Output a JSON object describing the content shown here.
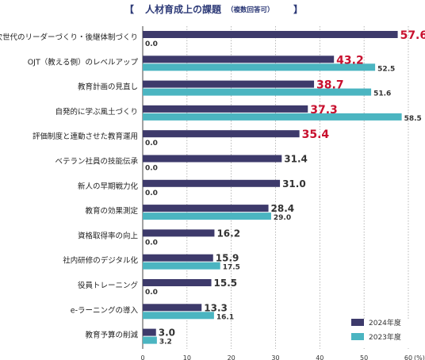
{
  "title": {
    "bracket_left": "【",
    "main": "人材育成上の課題",
    "sub": "（複数回答可）",
    "bracket_right": "】"
  },
  "chart_data": {
    "type": "bar",
    "orientation": "horizontal",
    "categories": [
      "次世代のリーダーづくり・後継体制づくり",
      "OJT（教える側）のレベルアップ",
      "教育計画の見直し",
      "自発的に学ぶ風土づくり",
      "評価制度と連動させた教育運用",
      "ベテラン社員の技能伝承",
      "新人の早期戦力化",
      "教育の効果測定",
      "資格取得率の向上",
      "社内研修のデジタル化",
      "役員トレーニング",
      "e-ラーニングの導入",
      "教育予算の削減"
    ],
    "series": [
      {
        "name": "2024年度",
        "color": "#3d3a6b",
        "values": [
          57.6,
          43.2,
          38.7,
          37.3,
          35.4,
          31.4,
          31.0,
          28.4,
          16.2,
          15.9,
          15.5,
          13.3,
          3.0
        ],
        "labels": [
          "57.6",
          "43.2",
          "38.7",
          "37.3",
          "35.4",
          "31.4",
          "31.0",
          "28.4",
          "16.2",
          "15.9",
          "15.5",
          "13.3",
          "3.0"
        ],
        "highlight_count": 5,
        "highlight_color": "#c8102e"
      },
      {
        "name": "2023年度",
        "color": "#4bb5c1",
        "values": [
          0.0,
          52.5,
          51.6,
          58.5,
          0.0,
          0.0,
          0.0,
          29.0,
          0.0,
          17.5,
          0.0,
          16.1,
          3.2
        ],
        "labels": [
          "0.0",
          "52.5",
          "51.6",
          "58.5",
          "0.0",
          "0.0",
          "0.0",
          "29.0",
          "0.0",
          "17.5",
          "0.0",
          "16.1",
          "3.2"
        ]
      }
    ],
    "x_ticks": [
      0,
      10,
      20,
      30,
      40,
      50,
      60
    ],
    "x_unit": "(%)",
    "xlim": [
      0,
      60
    ],
    "grid": "vertical dotted",
    "legend_position": "bottom-right"
  }
}
